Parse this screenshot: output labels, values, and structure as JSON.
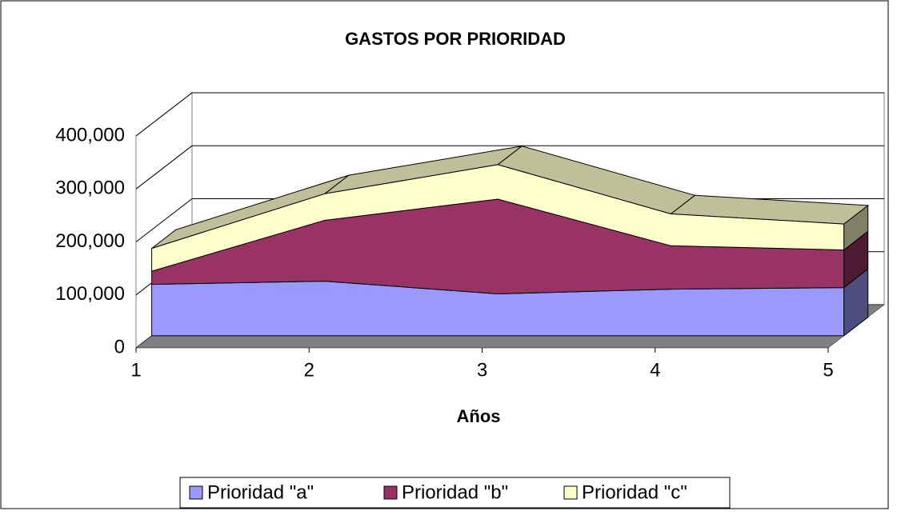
{
  "chart_data": {
    "type": "area3d",
    "title": "GASTOS POR PRIORIDAD",
    "x_label": "Años",
    "x": [
      1,
      2,
      3,
      4,
      5
    ],
    "xlim": [
      1,
      5
    ],
    "xticks": [
      1,
      2,
      3,
      4,
      5
    ],
    "ylim": [
      0,
      400000
    ],
    "yticks": [
      0,
      {
        "value": 100000,
        "label": "100,000"
      },
      {
        "value": 200000,
        "label": "200,000"
      },
      {
        "value": 300000,
        "label": "300,000"
      },
      {
        "value": 400000,
        "label": "400,000"
      }
    ],
    "grid": true,
    "stacked": true,
    "legend": "bottom",
    "series": [
      {
        "name": "Prioridad \"a\"",
        "color": "#9999ff",
        "values": [
          97000,
          103000,
          79000,
          88000,
          91000
        ]
      },
      {
        "name": "Prioridad \"b\"",
        "color": "#993366",
        "values": [
          25000,
          115000,
          179000,
          82000,
          71000
        ]
      },
      {
        "name": "Prioridad \"c\"",
        "color": "#ffffcc",
        "values": [
          43000,
          50000,
          65000,
          60000,
          49000
        ]
      }
    ]
  }
}
